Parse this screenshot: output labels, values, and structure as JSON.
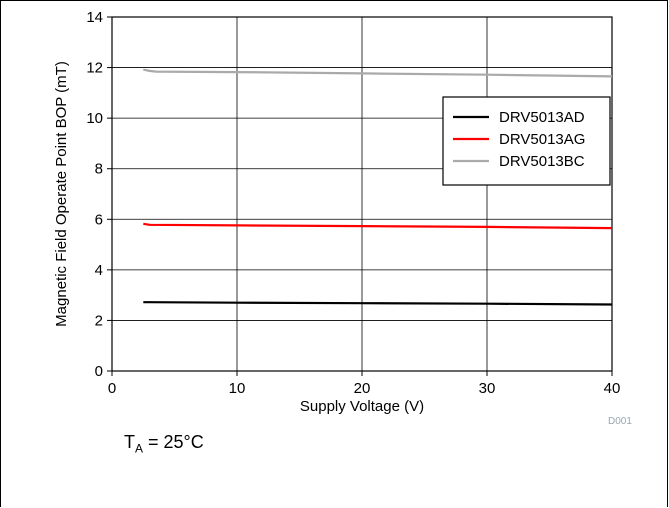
{
  "chart_data": {
    "type": "line",
    "xlabel": "Supply Voltage (V)",
    "ylabel": "Magnetic Field Operate Point BOP (mT)",
    "xlim": [
      0,
      40
    ],
    "ylim": [
      0,
      14
    ],
    "xticks": [
      "0",
      "10",
      "20",
      "30",
      "40"
    ],
    "yticks": [
      "0",
      "2",
      "4",
      "6",
      "8",
      "10",
      "12",
      "14"
    ],
    "grid": true,
    "legend_position": "upper right",
    "series": [
      {
        "name": "DRV5013AD",
        "color": "#000000",
        "x": [
          2.5,
          3.0,
          10,
          20,
          30,
          40
        ],
        "y": [
          2.72,
          2.72,
          2.7,
          2.68,
          2.66,
          2.63
        ]
      },
      {
        "name": "DRV5013AG",
        "color": "#ff0000",
        "x": [
          2.5,
          3.0,
          10,
          20,
          30,
          40
        ],
        "y": [
          5.82,
          5.78,
          5.76,
          5.73,
          5.7,
          5.65
        ]
      },
      {
        "name": "DRV5013BC",
        "color": "#aaaaaa",
        "x": [
          2.5,
          3.0,
          3.5,
          10,
          20,
          30,
          40
        ],
        "y": [
          11.92,
          11.87,
          11.84,
          11.82,
          11.77,
          11.72,
          11.65
        ]
      }
    ]
  },
  "annotations": {
    "condition_main": "T",
    "condition_sub": "A",
    "condition_rest": " = 25°C",
    "figure_id": "D001"
  }
}
